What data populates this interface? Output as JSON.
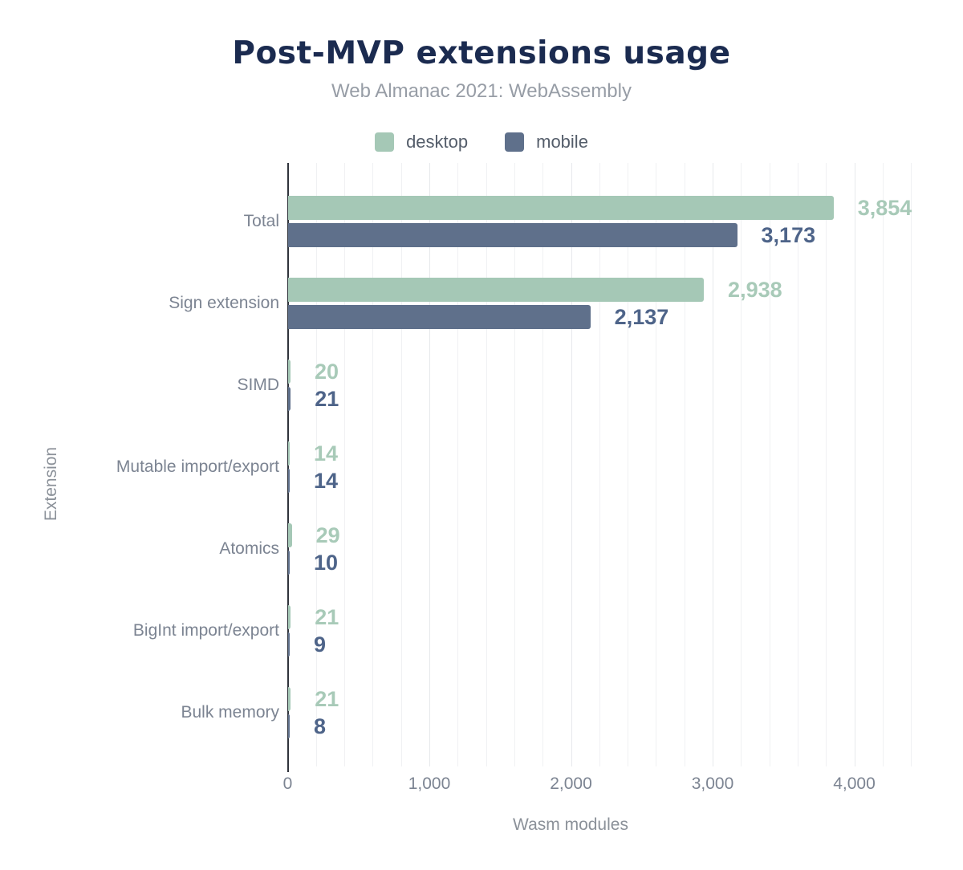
{
  "title": "Post-MVP extensions usage",
  "subtitle": "Web Almanac 2021: WebAssembly",
  "legend": {
    "items": [
      {
        "label": "desktop",
        "color": "#a5c8b6"
      },
      {
        "label": "mobile",
        "color": "#5f708b"
      }
    ]
  },
  "colors": {
    "title_navy": "#1b2b50",
    "subtitle_gray": "#979da6",
    "legend_text": "#545d6a",
    "label_gray": "#7c8492",
    "axis_title_gray": "#8b9199",
    "desktop_bar": "#a5c8b6",
    "desktop_value_label": "#a8cab8",
    "mobile_bar": "#5f708b",
    "mobile_value_label": "#4e6489",
    "axis_line": "#30343c",
    "grid_minor": "#f0f1f3",
    "grid_major": "#e7e9ec"
  },
  "chart_data": {
    "type": "bar",
    "orientation": "horizontal",
    "title": "Post-MVP extensions usage",
    "subtitle": "Web Almanac 2021: WebAssembly",
    "xlabel": "Wasm modules",
    "ylabel": "Extension",
    "categories": [
      "Total",
      "Sign extension",
      "SIMD",
      "Mutable import/export",
      "Atomics",
      "BigInt import/export",
      "Bulk memory"
    ],
    "series": [
      {
        "name": "desktop",
        "color": "#a5c8b6",
        "values": [
          3854,
          2938,
          20,
          14,
          29,
          21,
          21
        ]
      },
      {
        "name": "mobile",
        "color": "#5f708b",
        "values": [
          3173,
          2137,
          21,
          14,
          10,
          9,
          8
        ]
      }
    ],
    "value_labels": {
      "desktop": [
        "3,854",
        "2,938",
        "20",
        "14",
        "29",
        "21",
        "21"
      ],
      "mobile": [
        "3,173",
        "2,137",
        "21",
        "14",
        "10",
        "9",
        "8"
      ]
    },
    "xlim": [
      0,
      4400
    ],
    "xticks": [
      0,
      1000,
      2000,
      3000,
      4000
    ],
    "xtick_labels": [
      "0",
      "1,000",
      "2,000",
      "3,000",
      "4,000"
    ],
    "grid": {
      "vertical_minor_step": 200,
      "vertical_major_step": 1000,
      "horizontal": false
    },
    "legend_position": "top"
  }
}
